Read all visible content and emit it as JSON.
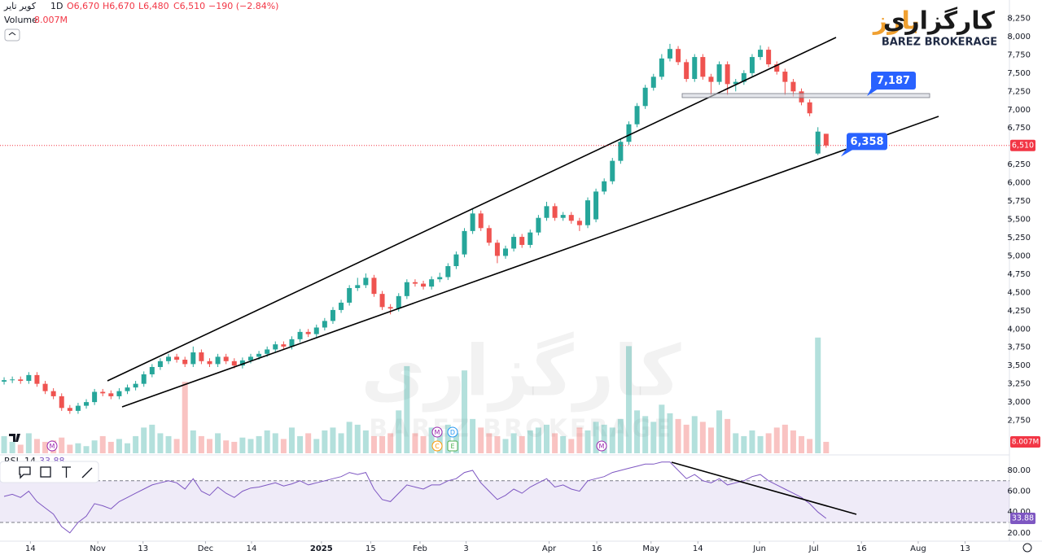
{
  "header": {
    "symbol": "کویر تایر",
    "interval": "1D",
    "open": "O6,670",
    "high": "H6,670",
    "low": "L6,480",
    "close": "C6,510",
    "change": "−190 (−2.84%)"
  },
  "logo": {
    "name_part1": "کارگزاری",
    "name_part2": "بارز",
    "english": "BAREZ BROKERAGE"
  },
  "chart_data": {
    "type": "candlestick",
    "up_color": "#26a69a",
    "down_color": "#ef5350",
    "xlim": [
      -0.5,
      122.3
    ],
    "xticks": [
      {
        "value": 3.2,
        "label": "14"
      },
      {
        "value": 11.4,
        "label": "Nov"
      },
      {
        "value": 16.9,
        "label": "13"
      },
      {
        "value": 24.5,
        "label": "Dec"
      },
      {
        "value": 30.1,
        "label": "14"
      },
      {
        "value": 38.6,
        "label": "2025"
      },
      {
        "value": 44.6,
        "label": "15"
      },
      {
        "value": 50.6,
        "label": "Feb"
      },
      {
        "value": 56.2,
        "label": "3"
      },
      {
        "value": 66.3,
        "label": "Apr"
      },
      {
        "value": 72.1,
        "label": "16"
      },
      {
        "value": 78.7,
        "label": "May"
      },
      {
        "value": 84.4,
        "label": "14"
      },
      {
        "value": 91.9,
        "label": "Jun"
      },
      {
        "value": 98.5,
        "label": "Jul"
      },
      {
        "value": 104.3,
        "label": "16"
      },
      {
        "value": 111.2,
        "label": "Aug"
      },
      {
        "value": 116.9,
        "label": "13"
      }
    ],
    "ylim": [
      2300,
      8500
    ],
    "yticks": [
      {
        "value": 2750,
        "label": "2,750"
      },
      {
        "value": 3000,
        "label": "3,000"
      },
      {
        "value": 3250,
        "label": "3,250"
      },
      {
        "value": 3500,
        "label": "3,500"
      },
      {
        "value": 3750,
        "label": "3,750"
      },
      {
        "value": 4000,
        "label": "4,000"
      },
      {
        "value": 4250,
        "label": "4,250"
      },
      {
        "value": 4500,
        "label": "4,500"
      },
      {
        "value": 4750,
        "label": "4,750"
      },
      {
        "value": 5000,
        "label": "5,000"
      },
      {
        "value": 5250,
        "label": "5,250"
      },
      {
        "value": 5500,
        "label": "5,500"
      },
      {
        "value": 5750,
        "label": "5,750"
      },
      {
        "value": 6000,
        "label": "6,000"
      },
      {
        "value": 6250,
        "label": "6,250"
      },
      {
        "value": 6750,
        "label": "6,750"
      },
      {
        "value": 7000,
        "label": "7,000"
      },
      {
        "value": 7250,
        "label": "7,250"
      },
      {
        "value": 7500,
        "label": "7,500"
      },
      {
        "value": 7750,
        "label": "7,750"
      },
      {
        "value": 8000,
        "label": "8,000"
      },
      {
        "value": 8250,
        "label": "8,250"
      }
    ],
    "grid": false,
    "open": [
      3280,
      3300,
      3310,
      3290,
      3370,
      3250,
      3150,
      3080,
      2920,
      2880,
      2950,
      3000,
      3140,
      3120,
      3080,
      3150,
      3200,
      3250,
      3380,
      3480,
      3560,
      3620,
      3580,
      3520,
      3680,
      3560,
      3520,
      3620,
      3560,
      3500,
      3570,
      3620,
      3660,
      3720,
      3790,
      3760,
      3860,
      3960,
      3930,
      4020,
      4110,
      4260,
      4360,
      4560,
      4600,
      4700,
      4480,
      4300,
      4280,
      4450,
      4640,
      4620,
      4580,
      4680,
      4710,
      4860,
      5020,
      5340,
      5580,
      5380,
      5180,
      5000,
      5100,
      5260,
      5150,
      5320,
      5520,
      5680,
      5520,
      5560,
      5480,
      5420,
      5500,
      5880,
      6020,
      6300,
      6560,
      6800,
      7050,
      7300,
      7450,
      7700,
      7830,
      7650,
      7420,
      7720,
      7450,
      7380,
      7620,
      7350,
      7380,
      7500,
      7720,
      7820,
      7620,
      7520,
      7380,
      7250,
      7100,
      6400,
      6670
    ],
    "high": [
      3340,
      3350,
      3350,
      3410,
      3410,
      3290,
      3190,
      3120,
      2960,
      2990,
      3040,
      3180,
      3180,
      3160,
      3190,
      3240,
      3290,
      3420,
      3520,
      3600,
      3660,
      3660,
      3620,
      3760,
      3720,
      3600,
      3660,
      3660,
      3600,
      3610,
      3660,
      3700,
      3760,
      3830,
      3830,
      3900,
      4000,
      4000,
      4060,
      4150,
      4300,
      4400,
      4600,
      4700,
      4760,
      4740,
      4520,
      4340,
      4490,
      4680,
      4680,
      4660,
      4720,
      4770,
      4900,
      5060,
      5380,
      5640,
      5620,
      5420,
      5220,
      5140,
      5300,
      5300,
      5360,
      5560,
      5740,
      5720,
      5600,
      5600,
      5520,
      5800,
      5920,
      6060,
      6340,
      6600,
      6840,
      7090,
      7340,
      7490,
      7760,
      7900,
      7870,
      7690,
      7760,
      7760,
      7490,
      7660,
      7660,
      7420,
      7540,
      7760,
      7880,
      7860,
      7660,
      7560,
      7420,
      7290,
      7140,
      6760,
      6670
    ],
    "low": [
      3240,
      3260,
      3250,
      3250,
      3210,
      3110,
      3040,
      2880,
      2840,
      2840,
      2910,
      2960,
      3080,
      3040,
      3040,
      3110,
      3160,
      3210,
      3340,
      3440,
      3520,
      3540,
      3480,
      3480,
      3520,
      3480,
      3480,
      3520,
      3460,
      3460,
      3530,
      3580,
      3620,
      3680,
      3720,
      3720,
      3820,
      3890,
      3890,
      3980,
      4070,
      4220,
      4320,
      4520,
      4560,
      4440,
      4260,
      4200,
      4240,
      4410,
      4580,
      4540,
      4540,
      4640,
      4670,
      4820,
      4980,
      5300,
      5340,
      5140,
      4900,
      4960,
      5060,
      5110,
      5110,
      5280,
      5480,
      5480,
      5480,
      5440,
      5340,
      5380,
      5460,
      5840,
      5980,
      6260,
      6520,
      6760,
      7010,
      7260,
      7410,
      7660,
      7610,
      7380,
      7380,
      7410,
      7200,
      7340,
      7200,
      7250,
      7340,
      7460,
      7680,
      7580,
      7480,
      7200,
      7180,
      7060,
      6910,
      6380,
      6480
    ],
    "close": [
      3300,
      3310,
      3290,
      3370,
      3250,
      3150,
      3080,
      2920,
      2880,
      2950,
      3000,
      3140,
      3120,
      3080,
      3150,
      3200,
      3250,
      3380,
      3480,
      3560,
      3620,
      3580,
      3520,
      3680,
      3560,
      3520,
      3620,
      3560,
      3500,
      3570,
      3620,
      3660,
      3720,
      3790,
      3760,
      3860,
      3960,
      3930,
      4020,
      4110,
      4260,
      4360,
      4560,
      4600,
      4700,
      4480,
      4300,
      4280,
      4450,
      4640,
      4620,
      4580,
      4680,
      4710,
      4860,
      5020,
      5340,
      5580,
      5380,
      5180,
      5000,
      5100,
      5260,
      5150,
      5320,
      5520,
      5680,
      5520,
      5560,
      5480,
      5420,
      5760,
      5880,
      6020,
      6300,
      6560,
      6800,
      7050,
      7300,
      7450,
      7700,
      7830,
      7650,
      7420,
      7720,
      7450,
      7380,
      7620,
      7350,
      7380,
      7500,
      7720,
      7820,
      7620,
      7520,
      7380,
      7250,
      7100,
      6950,
      6700,
      6510
    ],
    "last_price": {
      "value": 6510,
      "label": "6,510"
    },
    "annotations": [
      {
        "value": 7187,
        "label": "7,187"
      },
      {
        "value": 6358,
        "label": "6,358"
      }
    ],
    "volume": {
      "name": "Volume",
      "ylim": [
        0,
        90
      ],
      "last_label": "8.007M",
      "values": [
        12,
        8,
        6,
        14,
        10,
        8,
        9,
        11,
        6,
        7,
        5,
        9,
        12,
        8,
        10,
        7,
        12,
        18,
        20,
        14,
        12,
        10,
        50,
        16,
        12,
        10,
        14,
        9,
        8,
        11,
        10,
        12,
        16,
        14,
        10,
        18,
        12,
        14,
        10,
        16,
        18,
        14,
        22,
        20,
        16,
        12,
        12,
        14,
        30,
        61,
        14,
        12,
        18,
        16,
        20,
        14,
        58,
        24,
        18,
        14,
        12,
        10,
        14,
        12,
        16,
        18,
        20,
        14,
        12,
        10,
        18,
        16,
        22,
        20,
        18,
        24,
        75,
        30,
        26,
        22,
        34,
        28,
        24,
        20,
        26,
        22,
        18,
        30,
        24,
        14,
        12,
        16,
        12,
        14,
        18,
        20,
        16,
        12,
        10,
        81,
        8.007
      ]
    },
    "rsi": {
      "name": "RSI",
      "period": 14,
      "color": "#7e57c2",
      "ylim": [
        12,
        92.5
      ],
      "band": [
        70,
        30
      ],
      "yticks": [
        {
          "value": 80,
          "label": "80.00"
        },
        {
          "value": 60,
          "label": "60.00"
        },
        {
          "value": 40,
          "label": "40.00"
        },
        {
          "value": 20,
          "label": "20.00"
        }
      ],
      "values": [
        55,
        57,
        54,
        60,
        50,
        44,
        38,
        26,
        20,
        30,
        36,
        48,
        46,
        43,
        50,
        54,
        58,
        62,
        66,
        68,
        70,
        68,
        62,
        72,
        60,
        56,
        64,
        58,
        54,
        60,
        63,
        64,
        66,
        68,
        65,
        67,
        70,
        66,
        68,
        70,
        72,
        74,
        78,
        76,
        78,
        62,
        52,
        50,
        58,
        66,
        64,
        62,
        66,
        66,
        70,
        72,
        78,
        80,
        68,
        60,
        52,
        56,
        62,
        58,
        64,
        68,
        72,
        64,
        66,
        62,
        60,
        70,
        72,
        74,
        78,
        80,
        82,
        84,
        86,
        86,
        88,
        88,
        80,
        72,
        76,
        70,
        68,
        72,
        66,
        68,
        70,
        74,
        76,
        70,
        66,
        62,
        58,
        54,
        48,
        40,
        33.88
      ]
    },
    "events": [
      {
        "label": "M",
        "color": "#9c27b0"
      },
      {
        "label": "M",
        "color": "#9c27b0"
      },
      {
        "label": "D",
        "color": "#2196f3"
      },
      {
        "label": "C",
        "color": "#ff9800"
      },
      {
        "label": "E",
        "color": "#4caf50"
      },
      {
        "label": "M",
        "color": "#9c27b0"
      }
    ]
  }
}
